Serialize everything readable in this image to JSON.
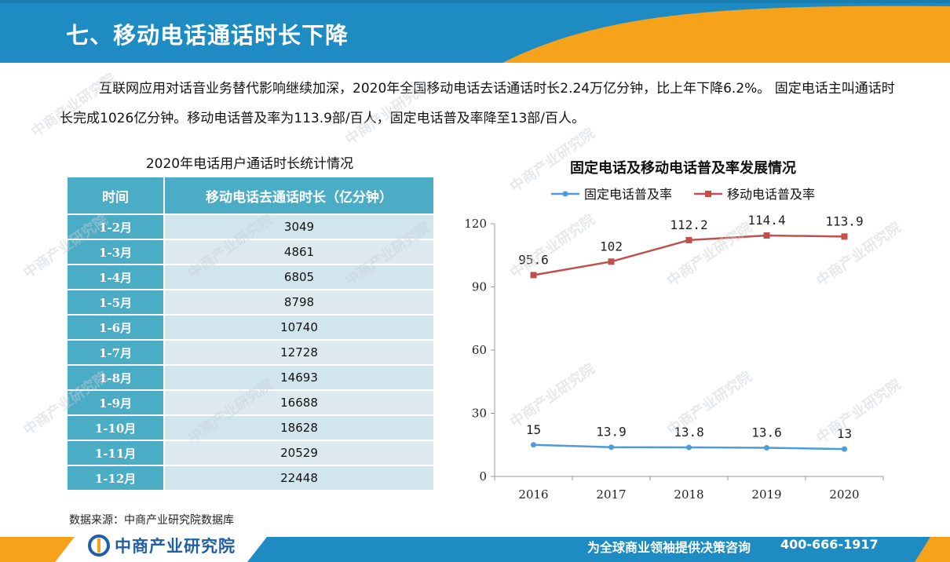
{
  "header": {
    "title": "七、移动电话通话时长下降"
  },
  "intro": {
    "text": "互联网应用对话音业务替代影响继续加深，2020年全国移动电话去话通话时长2.24万亿分钟，比上年下降6.2%。 固定电话主叫通话时长完成1026亿分钟。移动电话普及率为113.9部/百人，固定电话普及率降至13部/百人。"
  },
  "table": {
    "title": "2020年电话用户通话时长统计情况",
    "headers": [
      "时间",
      "移动电话去通话时长（亿分钟）"
    ],
    "rows": [
      [
        "1-2月",
        "3049"
      ],
      [
        "1-3月",
        "4861"
      ],
      [
        "1-4月",
        "6805"
      ],
      [
        "1-5月",
        "8798"
      ],
      [
        "1-6月",
        "10740"
      ],
      [
        "1-7月",
        "12728"
      ],
      [
        "1-8月",
        "14693"
      ],
      [
        "1-9月",
        "16688"
      ],
      [
        "1-10月",
        "18628"
      ],
      [
        "1-11月",
        "20529"
      ],
      [
        "1-12月",
        "22448"
      ]
    ],
    "source": "数据来源：中商产业研究院数据库"
  },
  "chart_data": {
    "type": "line",
    "title": "固定电话及移动电话普及率发展情况",
    "x": [
      "2016",
      "2017",
      "2018",
      "2019",
      "2020"
    ],
    "series": [
      {
        "name": "固定电话普及率",
        "values": [
          15,
          13.9,
          13.8,
          13.6,
          13
        ],
        "labels": [
          "15",
          "13.9",
          "13.8",
          "13.6",
          "13"
        ],
        "color": "#4f9ad8",
        "marker": "circle"
      },
      {
        "name": "移动电话普及率",
        "values": [
          95.6,
          102,
          112.2,
          114.4,
          113.9
        ],
        "labels": [
          "95.6",
          "102",
          "112.2",
          "114.4",
          "113.9"
        ],
        "color": "#c0504d",
        "marker": "square"
      }
    ],
    "ylim": [
      0,
      120
    ],
    "yticks": [
      0,
      30,
      60,
      90,
      120
    ],
    "legend": "top",
    "grid": false
  },
  "footer": {
    "brand": "中商产业研究院",
    "slogan": "为全球商业领袖提供决策咨询",
    "phone": "400-666-1917"
  },
  "watermark": {
    "text": "中商产业研究院"
  },
  "colors": {
    "header_blue": "#1e8bc3",
    "accent_orange": "#f7a21b",
    "table_blue": "#4bacc6",
    "table_cell": "#d1e5ec"
  }
}
